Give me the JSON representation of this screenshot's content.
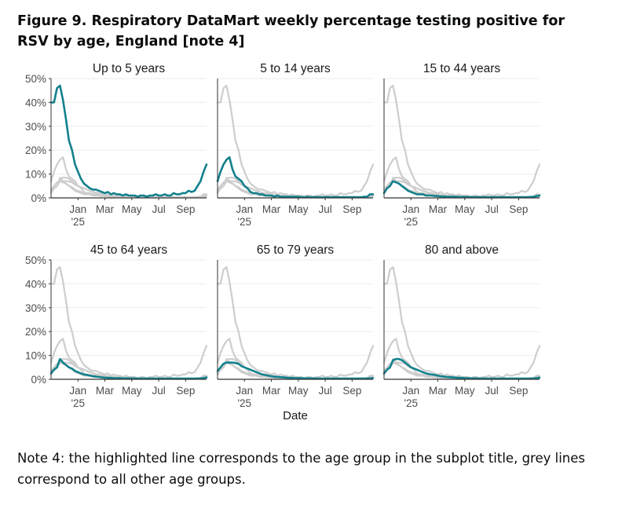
{
  "figure": {
    "title": "Figure 9. Respiratory DataMart weekly percentage testing positive for RSV by age, England [note 4]",
    "note": "Note 4: the highlighted line corresponds to the age group in the subplot title, grey lines correspond to all other age groups."
  },
  "colors": {
    "highlight": "#12818c",
    "other": "#cdcdcd",
    "grid": "#ebebeb",
    "axis": "#333333"
  },
  "chart_data": {
    "type": "line",
    "xlabel": "Date",
    "ylabel": "",
    "ylim": [
      0,
      50
    ],
    "yticks": [
      0,
      10,
      20,
      30,
      40,
      50
    ],
    "ytick_labels": [
      "0%",
      "10%",
      "20%",
      "30%",
      "40%",
      "50%"
    ],
    "xlim": [
      0,
      52
    ],
    "xticks": [
      9,
      18,
      27,
      36,
      45
    ],
    "xtick_labels": [
      "Jan",
      "Mar",
      "May",
      "Jul",
      "Sep"
    ],
    "xtick_sublabel": "'25",
    "grid": true,
    "x": [
      0,
      1,
      2,
      3,
      4,
      5,
      6,
      7,
      8,
      9,
      10,
      11,
      12,
      13,
      14,
      15,
      16,
      17,
      18,
      19,
      20,
      21,
      22,
      23,
      24,
      25,
      26,
      27,
      28,
      29,
      30,
      31,
      32,
      33,
      34,
      35,
      36,
      37,
      38,
      39,
      40,
      41,
      42,
      43,
      44,
      45,
      46,
      47,
      48,
      49,
      50,
      51,
      52
    ],
    "series": [
      {
        "name": "Up to 5 years",
        "values": [
          40,
          40,
          46,
          47,
          41,
          33,
          24,
          20,
          14,
          11,
          8,
          6,
          5,
          4,
          3.5,
          3.5,
          3,
          2.5,
          2,
          2.5,
          1.5,
          2,
          1.5,
          1.5,
          1,
          1.5,
          1,
          1,
          1,
          0.5,
          1,
          1,
          0.5,
          1,
          1,
          1.5,
          1,
          1,
          1.5,
          1,
          1,
          2,
          1.5,
          1.5,
          2,
          2,
          3,
          2.5,
          3,
          5,
          7,
          11,
          14
        ]
      },
      {
        "name": "5 to 14 years",
        "values": [
          7,
          11,
          14,
          16,
          17,
          12,
          9,
          8,
          7,
          5,
          4,
          2.5,
          2,
          2,
          1.5,
          1.5,
          1,
          1,
          1,
          0.5,
          1,
          0.5,
          0.5,
          0.5,
          0.5,
          0.5,
          0.5,
          0.5,
          0.3,
          0.3,
          0.5,
          0.3,
          0.3,
          0.3,
          0.3,
          0.3,
          0.3,
          0.3,
          0.3,
          0.3,
          0.3,
          0.3,
          0.3,
          0.3,
          0.3,
          0.3,
          0.3,
          0.3,
          0.3,
          0.5,
          0.5,
          1.5,
          1.5
        ]
      },
      {
        "name": "15 to 44 years",
        "values": [
          2,
          4,
          5,
          7,
          6.5,
          6,
          5,
          4,
          3,
          2.5,
          2,
          1.5,
          1.5,
          1.5,
          1,
          1,
          1,
          0.8,
          0.8,
          0.6,
          0.6,
          0.5,
          0.5,
          0.5,
          0.5,
          0.4,
          0.4,
          0.4,
          0.4,
          0.3,
          0.3,
          0.3,
          0.3,
          0.3,
          0.3,
          0.3,
          0.3,
          0.3,
          0.3,
          0.3,
          0.3,
          0.3,
          0.3,
          0.3,
          0.3,
          0.3,
          0.3,
          0.3,
          0.3,
          0.4,
          0.5,
          0.8,
          1
        ]
      },
      {
        "name": "45 to 64 years",
        "values": [
          2.5,
          4,
          5,
          8.5,
          7,
          6,
          5,
          4.5,
          3.5,
          3,
          2.5,
          2,
          1.8,
          1.5,
          1.3,
          1.1,
          1,
          0.8,
          0.7,
          0.6,
          0.6,
          0.5,
          0.5,
          0.5,
          0.4,
          0.4,
          0.4,
          0.4,
          0.3,
          0.3,
          0.3,
          0.3,
          0.3,
          0.3,
          0.3,
          0.3,
          0.3,
          0.3,
          0.3,
          0.3,
          0.3,
          0.3,
          0.3,
          0.3,
          0.3,
          0.3,
          0.3,
          0.3,
          0.3,
          0.3,
          0.4,
          0.5,
          0.8
        ]
      },
      {
        "name": "65 to 79 years",
        "values": [
          3.5,
          5,
          6.5,
          7,
          7,
          7,
          6.8,
          6.5,
          5.5,
          5,
          4.5,
          4,
          3.5,
          3,
          2.5,
          2,
          1.8,
          1.5,
          1.3,
          1.1,
          1,
          0.9,
          0.8,
          0.7,
          0.6,
          0.6,
          0.5,
          0.5,
          0.5,
          0.4,
          0.4,
          0.4,
          0.4,
          0.3,
          0.3,
          0.3,
          0.3,
          0.3,
          0.3,
          0.3,
          0.3,
          0.3,
          0.3,
          0.3,
          0.3,
          0.3,
          0.3,
          0.3,
          0.3,
          0.3,
          0.3,
          0.4,
          0.5
        ]
      },
      {
        "name": "80 and above",
        "values": [
          2.5,
          4,
          5,
          8,
          8.5,
          8.5,
          8,
          7,
          6,
          5,
          4.5,
          4,
          3.5,
          3,
          2.5,
          2.2,
          2,
          1.8,
          1.5,
          1.3,
          1.1,
          1,
          0.9,
          0.8,
          0.7,
          0.6,
          0.6,
          0.5,
          0.5,
          0.4,
          0.4,
          0.4,
          0.3,
          0.3,
          0.3,
          0.3,
          0.3,
          0.3,
          0.3,
          0.3,
          0.3,
          0.3,
          0.3,
          0.3,
          0.3,
          0.3,
          0.3,
          0.3,
          0.3,
          0.3,
          0.4,
          0.5,
          0.7
        ]
      }
    ],
    "panels": [
      "Up to 5 years",
      "5 to 14 years",
      "15 to 44 years",
      "45 to 64 years",
      "65 to 79 years",
      "80 and above"
    ]
  }
}
